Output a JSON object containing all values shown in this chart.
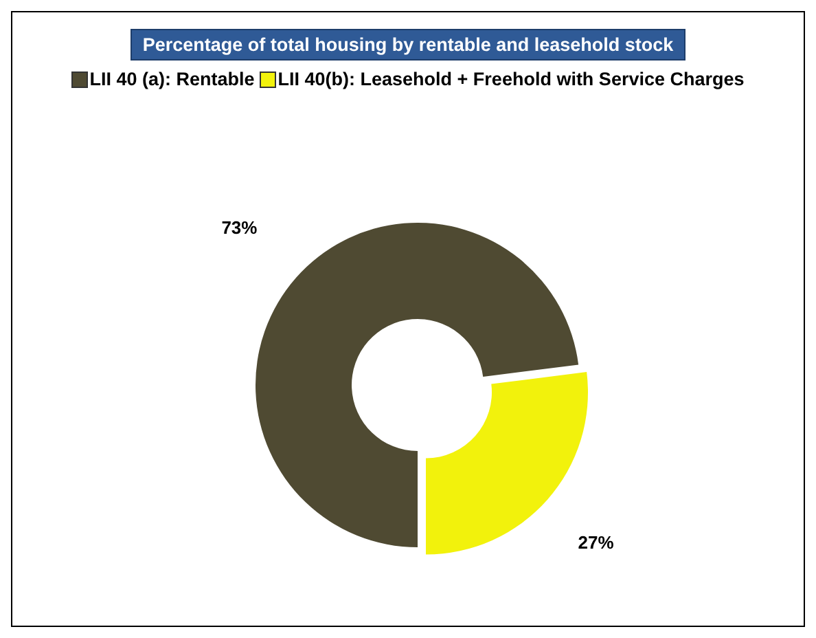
{
  "chart_data": {
    "type": "donut",
    "title": "Percentage of total housing by rentable and leasehold stock",
    "categories": [
      "LII 40 (a): Rentable",
      "LII 40(b): Leasehold + Freehold with Service Charges"
    ],
    "values": [
      73,
      27
    ],
    "colors": [
      "#4f4a32",
      "#f2f20c"
    ],
    "value_labels": [
      "73%",
      "27%"
    ],
    "legend": "top"
  }
}
